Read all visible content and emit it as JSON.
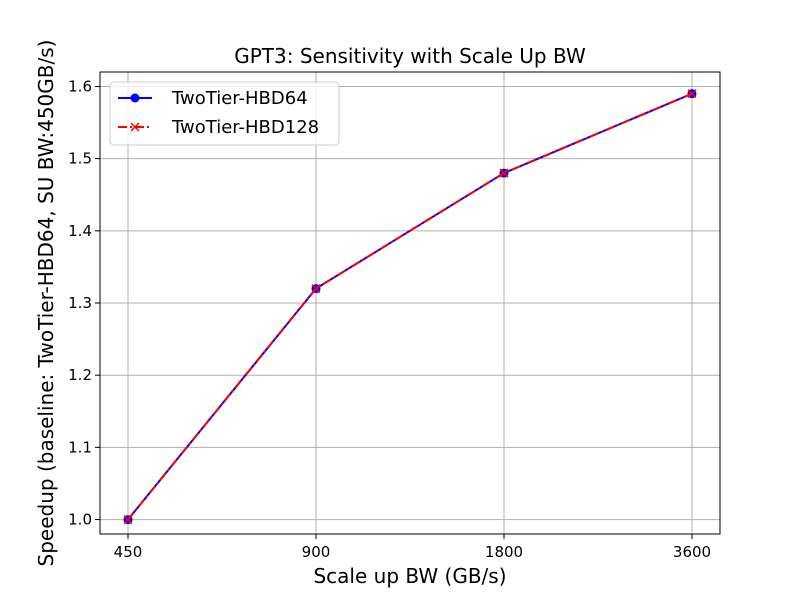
{
  "chart_data": {
    "type": "line",
    "title": "GPT3: Sensitivity with Scale Up BW",
    "xlabel": "Scale up BW (GB/s)",
    "ylabel": "Speedup (baseline: TwoTier-HBD64, SU BW:450GB/s)",
    "categories": [
      "450",
      "900",
      "1800",
      "3600"
    ],
    "x_scale": "log2",
    "ylim": [
      0.98,
      1.62
    ],
    "yticks": [
      "1.0",
      "1.1",
      "1.2",
      "1.3",
      "1.4",
      "1.5",
      "1.6"
    ],
    "grid": true,
    "legend_position": "top-left",
    "series": [
      {
        "name": "TwoTier-HBD64",
        "values": [
          1.0,
          1.32,
          1.48,
          1.59
        ],
        "color": "#0000ff",
        "marker": "circle",
        "line_style": "solid"
      },
      {
        "name": "TwoTier-HBD128",
        "values": [
          1.0,
          1.32,
          1.48,
          1.59
        ],
        "color": "#ff0000",
        "marker": "x",
        "line_style": "dash-dot"
      }
    ]
  }
}
